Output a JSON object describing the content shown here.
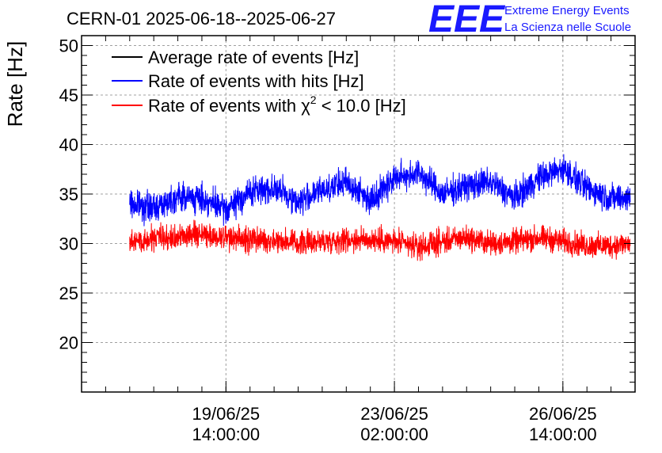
{
  "chart_data": {
    "type": "line",
    "title": "CERN-01 2025-06-18--2025-06-27",
    "xlabel": "",
    "ylabel": "Rate [Hz]",
    "ylim": [
      15,
      51
    ],
    "yticks": [
      20,
      25,
      30,
      35,
      40,
      45,
      50
    ],
    "xlim_days": [
      0,
      11.5
    ],
    "xticks": [
      {
        "day": 3.0,
        "date": "19/06/25",
        "time": "14:00:00"
      },
      {
        "day": 6.5,
        "date": "23/06/25",
        "time": "02:00:00"
      },
      {
        "day": 10.0,
        "date": "26/06/25",
        "time": "14:00:00"
      }
    ],
    "legend": [
      {
        "label_main": "Average rate of events [Hz]",
        "color": "#000000"
      },
      {
        "label_main": "Rate of events with hits [Hz]",
        "color": "#0000ff"
      },
      {
        "label_main": "Rate of events with ",
        "chi": "χ",
        "sup": "2",
        "label_rest": " < 10.0 [Hz]",
        "color": "#ff0000"
      }
    ],
    "series": [
      {
        "name": "Rate of events with hits [Hz]",
        "color": "#0000ff",
        "x_days": [
          1.0,
          1.5,
          2.0,
          2.5,
          3.0,
          3.5,
          4.0,
          4.5,
          5.0,
          5.5,
          6.0,
          6.5,
          7.0,
          7.5,
          8.0,
          8.5,
          9.0,
          9.5,
          10.0,
          10.5,
          11.0,
          11.4
        ],
        "values": [
          34.0,
          33.6,
          34.8,
          34.5,
          33.4,
          35.2,
          35.6,
          34.2,
          35.4,
          36.2,
          34.4,
          36.6,
          37.2,
          35.0,
          35.8,
          36.2,
          34.6,
          36.6,
          37.6,
          35.6,
          34.6,
          34.6
        ],
        "noise": 1.3
      },
      {
        "name": "Rate of events with chi2 < 10.0 [Hz]",
        "color": "#ff0000",
        "x_days": [
          1.0,
          1.5,
          2.0,
          2.5,
          3.0,
          3.5,
          4.0,
          4.5,
          5.0,
          5.5,
          6.0,
          6.5,
          7.0,
          7.5,
          8.0,
          8.5,
          9.0,
          9.5,
          10.0,
          10.5,
          11.0,
          11.4
        ],
        "values": [
          30.2,
          30.6,
          30.6,
          31.0,
          30.6,
          30.4,
          30.4,
          30.0,
          30.2,
          30.4,
          30.4,
          30.2,
          29.6,
          30.2,
          30.6,
          30.0,
          30.2,
          30.6,
          30.2,
          29.8,
          29.8,
          30.0
        ],
        "noise": 1.1
      }
    ]
  },
  "logo": {
    "letters": "EEE",
    "line1": "Extreme Energy Events",
    "line2": "La Scienza nelle Scuole"
  }
}
